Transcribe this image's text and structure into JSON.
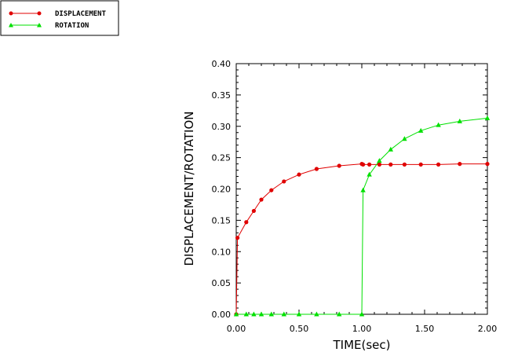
{
  "chart_data": {
    "type": "line",
    "title": "",
    "xlabel": "TIME(sec)",
    "ylabel": "DISPLACEMENT/ROTATION",
    "xlim": [
      0,
      2
    ],
    "ylim": [
      0,
      0.4
    ],
    "x_ticks": [
      "0.00",
      "0.50",
      "1.00",
      "1.50",
      "2.00"
    ],
    "y_ticks": [
      "0.00",
      "0.05",
      "0.10",
      "0.15",
      "0.20",
      "0.25",
      "0.30",
      "0.35",
      "0.40"
    ],
    "legend_placement": "top-left",
    "grid": false,
    "series": [
      {
        "name": "DISPLACEMENT",
        "color": "#e00000",
        "marker": "circle",
        "x": [
          0,
          0.01,
          0.08,
          0.14,
          0.2,
          0.28,
          0.38,
          0.5,
          0.64,
          0.82,
          1.0,
          1.01,
          1.06,
          1.14,
          1.23,
          1.34,
          1.47,
          1.61,
          1.78,
          2.0
        ],
        "y": [
          0,
          0.122,
          0.147,
          0.165,
          0.183,
          0.198,
          0.212,
          0.223,
          0.232,
          0.237,
          0.24,
          0.239,
          0.239,
          0.239,
          0.239,
          0.239,
          0.239,
          0.239,
          0.24,
          0.24
        ]
      },
      {
        "name": "ROTATION",
        "color": "#00e000",
        "marker": "triangle",
        "x": [
          0,
          0.08,
          0.14,
          0.2,
          0.28,
          0.38,
          0.5,
          0.64,
          0.82,
          1.0,
          1.01,
          1.06,
          1.14,
          1.23,
          1.34,
          1.47,
          1.61,
          1.78,
          2.0
        ],
        "y": [
          0,
          0,
          0,
          0,
          0,
          0,
          0,
          0,
          0,
          0,
          0.198,
          0.223,
          0.245,
          0.263,
          0.28,
          0.293,
          0.302,
          0.308,
          0.313
        ]
      }
    ]
  }
}
